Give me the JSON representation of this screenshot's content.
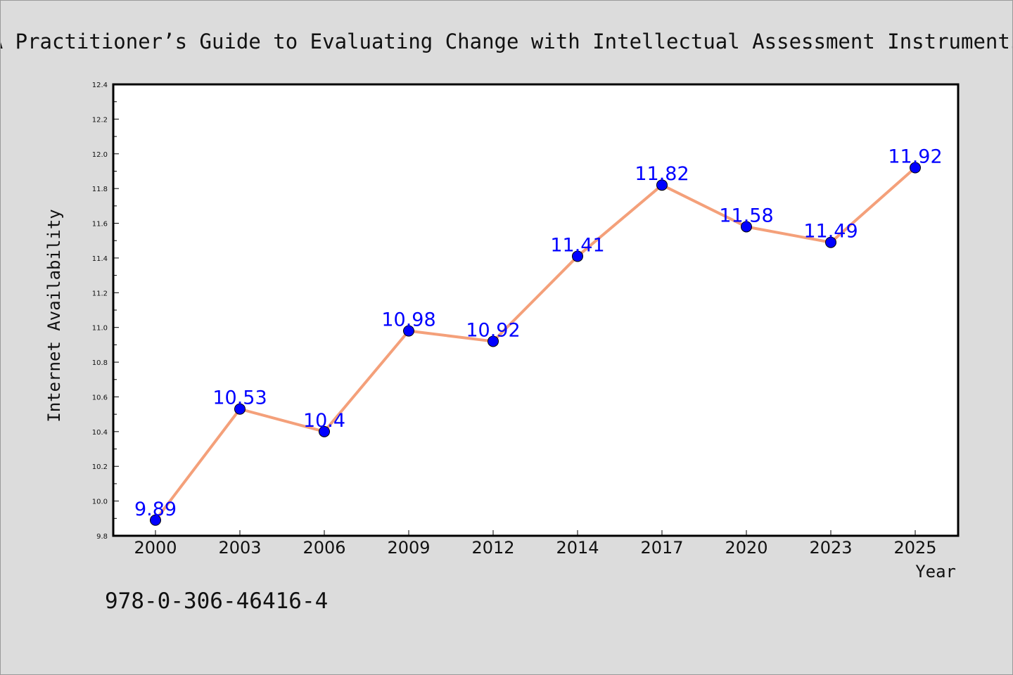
{
  "title": "A Practitioner’s Guide to Evaluating Change with Intellectual Assessment Instruments",
  "footnote": "978-0-306-46416-4",
  "colors": {
    "background": "#dcdcdc",
    "plot_background": "#ffffff",
    "line": "#f4a07a",
    "marker": "#0000ff",
    "data_label": "#0000ff"
  },
  "chart_data": {
    "type": "line",
    "title": "A Practitioner’s Guide to Evaluating Change with Intellectual Assessment Instruments",
    "xlabel": "Year",
    "ylabel": "Internet Availability",
    "categories": [
      "2000",
      "2003",
      "2006",
      "2009",
      "2012",
      "2014",
      "2017",
      "2020",
      "2023",
      "2025"
    ],
    "series": [
      {
        "values": [
          9.89,
          10.53,
          10.4,
          10.98,
          10.92,
          11.41,
          11.82,
          11.58,
          11.49,
          11.92
        ]
      }
    ],
    "data_labels": [
      "9.89",
      "10.53",
      "10.4",
      "10.98",
      "10.92",
      "11.41",
      "11.82",
      "11.58",
      "11.49",
      "11.92"
    ],
    "ylim": [
      9.8,
      12.4
    ],
    "yticks": [
      "9.8",
      "10.0",
      "10.2",
      "10.4",
      "10.6",
      "10.8",
      "11.0",
      "11.2",
      "11.4",
      "11.6",
      "11.8",
      "12.0",
      "12.2",
      "12.4"
    ],
    "grid": false,
    "legend": "none",
    "marker": "circle"
  }
}
